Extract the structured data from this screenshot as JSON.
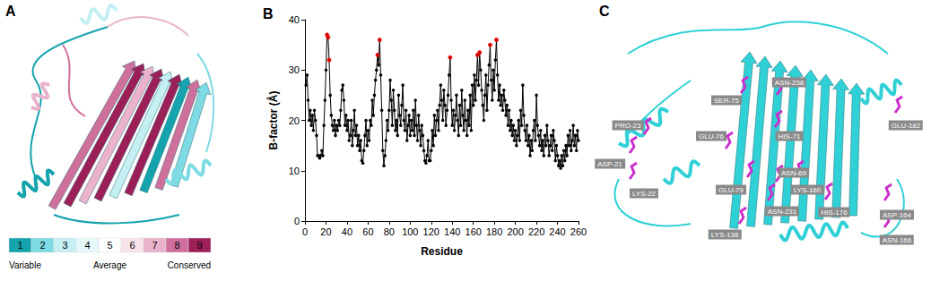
{
  "chart_data": {
    "type": "line",
    "title": "B",
    "x_label": "Residue",
    "y_label": "B-factor (Å)",
    "x": [
      1,
      2,
      3,
      4,
      5,
      6,
      7,
      8,
      9,
      10,
      11,
      12,
      13,
      14,
      15,
      16,
      17,
      18,
      19,
      20,
      21,
      22,
      23,
      24,
      25,
      26,
      27,
      28,
      29,
      30,
      31,
      32,
      33,
      34,
      35,
      36,
      37,
      38,
      39,
      40,
      41,
      42,
      43,
      44,
      45,
      46,
      47,
      48,
      49,
      50,
      51,
      52,
      53,
      54,
      55,
      56,
      57,
      58,
      59,
      60,
      61,
      62,
      63,
      64,
      65,
      66,
      67,
      68,
      69,
      70,
      71,
      72,
      73,
      74,
      75,
      76,
      77,
      78,
      79,
      80,
      81,
      82,
      83,
      84,
      85,
      86,
      87,
      88,
      89,
      90,
      91,
      92,
      93,
      94,
      95,
      96,
      97,
      98,
      99,
      100,
      101,
      102,
      103,
      104,
      105,
      106,
      107,
      108,
      109,
      110,
      111,
      112,
      113,
      114,
      115,
      116,
      117,
      118,
      119,
      120,
      121,
      122,
      123,
      124,
      125,
      126,
      127,
      128,
      129,
      130,
      131,
      132,
      133,
      134,
      135,
      136,
      137,
      138,
      139,
      140,
      141,
      142,
      143,
      144,
      145,
      146,
      147,
      148,
      149,
      150,
      151,
      152,
      153,
      154,
      155,
      156,
      157,
      158,
      159,
      160,
      161,
      162,
      163,
      164,
      165,
      166,
      167,
      168,
      169,
      170,
      171,
      172,
      173,
      174,
      175,
      176,
      177,
      178,
      179,
      180,
      181,
      182,
      183,
      184,
      185,
      186,
      187,
      188,
      189,
      190,
      191,
      192,
      193,
      194,
      195,
      196,
      197,
      198,
      199,
      200,
      201,
      202,
      203,
      204,
      205,
      206,
      207,
      208,
      209,
      210,
      211,
      212,
      213,
      214,
      215,
      216,
      217,
      218,
      219,
      220,
      221,
      222,
      223,
      224,
      225,
      226,
      227,
      228,
      229,
      230,
      231,
      232,
      233,
      234,
      235,
      236,
      237,
      238,
      239,
      240,
      241,
      242,
      243,
      244,
      245,
      246,
      247,
      248,
      249,
      250,
      251,
      252,
      253,
      254,
      255,
      256,
      257,
      258,
      259,
      260
    ],
    "series": [
      {
        "type": "line",
        "color": "#000000",
        "marker": "circle",
        "line_style": "solid",
        "values": [
          27,
          29,
          24,
          20,
          22,
          19,
          21,
          18,
          22,
          20,
          17,
          13,
          13,
          12.5,
          13,
          14,
          13,
          19,
          24,
          30,
          37,
          36.5,
          32,
          25,
          21,
          19,
          18,
          20,
          17,
          19,
          18,
          20,
          19,
          22,
          26,
          27,
          24,
          19,
          21,
          18,
          20,
          16,
          17,
          20,
          15,
          18,
          22,
          17,
          19,
          15,
          17,
          14,
          16,
          12,
          11.5,
          14,
          17,
          20,
          15,
          18,
          16,
          20,
          19,
          24,
          21,
          25,
          28,
          30,
          33,
          31,
          36,
          29,
          22,
          14,
          11,
          13,
          16,
          20,
          18,
          22,
          28,
          24,
          19,
          26,
          22,
          18,
          20,
          17,
          25,
          21,
          19,
          23,
          27,
          20,
          18,
          22,
          16,
          19,
          21,
          17,
          20,
          18,
          22,
          17,
          24,
          19,
          16,
          21,
          18,
          15,
          19,
          17,
          14,
          12,
          11.5,
          13,
          16,
          12,
          12,
          14,
          18,
          15,
          21,
          17,
          20,
          22,
          18,
          23,
          27,
          24,
          20,
          26,
          23,
          19,
          22,
          25,
          29,
          32.5,
          24,
          19,
          22,
          18,
          21,
          25,
          20,
          17,
          23,
          19,
          26,
          21,
          18,
          24,
          20,
          17,
          22,
          19,
          25,
          18,
          27,
          23,
          29,
          24,
          28,
          33,
          27,
          33.5,
          30,
          26,
          23,
          20,
          25,
          29,
          22,
          27,
          31,
          35,
          28,
          24,
          30,
          26,
          32,
          36,
          29,
          24,
          27,
          23,
          25,
          22,
          26,
          24,
          21,
          23,
          19,
          22,
          18,
          20,
          17,
          19,
          16,
          18,
          15,
          17,
          20,
          16,
          22,
          19,
          27,
          21,
          18,
          16,
          19,
          15,
          17,
          13,
          16,
          14,
          18,
          20,
          16,
          25,
          19,
          17,
          15,
          18,
          14,
          16,
          13,
          17,
          15,
          19,
          16,
          13,
          15,
          17,
          14,
          18,
          16,
          12,
          15,
          13,
          11,
          12,
          10.5,
          13,
          11,
          14,
          12,
          15,
          13,
          17,
          15,
          18,
          14,
          16,
          19,
          15,
          17,
          14,
          18,
          16
        ]
      },
      {
        "type": "scatter",
        "color": "#ff0000",
        "marker": "circle",
        "values": [
          null,
          null,
          null,
          null,
          null,
          null,
          null,
          null,
          null,
          null,
          null,
          null,
          null,
          null,
          null,
          null,
          null,
          null,
          null,
          null,
          37,
          36.5,
          32,
          null,
          null,
          null,
          null,
          null,
          null,
          null,
          null,
          null,
          null,
          null,
          null,
          null,
          null,
          null,
          null,
          null,
          null,
          null,
          null,
          null,
          null,
          null,
          null,
          null,
          null,
          null,
          null,
          null,
          null,
          null,
          null,
          null,
          null,
          null,
          null,
          null,
          null,
          null,
          null,
          null,
          null,
          null,
          null,
          null,
          33,
          null,
          36,
          null,
          null,
          null,
          null,
          null,
          null,
          null,
          null,
          null,
          null,
          null,
          null,
          null,
          null,
          null,
          null,
          null,
          null,
          null,
          null,
          null,
          null,
          null,
          null,
          null,
          null,
          null,
          null,
          null,
          null,
          null,
          null,
          null,
          null,
          null,
          null,
          null,
          null,
          null,
          null,
          null,
          null,
          null,
          null,
          null,
          null,
          null,
          null,
          null,
          null,
          null,
          null,
          null,
          null,
          null,
          null,
          null,
          null,
          null,
          null,
          null,
          null,
          null,
          null,
          null,
          null,
          32.5,
          null,
          null,
          null,
          null,
          null,
          null,
          null,
          null,
          null,
          null,
          null,
          null,
          null,
          null,
          null,
          null,
          null,
          null,
          null,
          null,
          null,
          null,
          null,
          null,
          null,
          33,
          null,
          33.5,
          null,
          null,
          null,
          null,
          null,
          null,
          null,
          null,
          null,
          35,
          null,
          null,
          null,
          null,
          null,
          36,
          null,
          null,
          null,
          null,
          null,
          null,
          null,
          null,
          null,
          null,
          null,
          null,
          null,
          null,
          null,
          null,
          null,
          null,
          null,
          null,
          null,
          null,
          null,
          null,
          null,
          null,
          null,
          null,
          null,
          null,
          null,
          null,
          null,
          null,
          null,
          null,
          null,
          null,
          null,
          null,
          null,
          null,
          null,
          null,
          null,
          null,
          null,
          null,
          null,
          null,
          null,
          null,
          null,
          null,
          null,
          null,
          null,
          null,
          null,
          null,
          null,
          null,
          null,
          null,
          null,
          null,
          null,
          null,
          null,
          null,
          null,
          null,
          null,
          null,
          null,
          null,
          null,
          null
        ]
      }
    ],
    "xlim": [
      0,
      260
    ],
    "xticks": [
      0,
      20,
      40,
      60,
      80,
      100,
      120,
      140,
      160,
      180,
      200,
      220,
      240,
      260
    ],
    "ylim": [
      0,
      40
    ],
    "yticks": [
      0,
      10,
      20,
      30,
      40
    ],
    "grid": false
  },
  "panel_a": {
    "title": "A",
    "scale": {
      "grades": [
        "1",
        "2",
        "3",
        "4",
        "5",
        "6",
        "7",
        "8",
        "9"
      ],
      "colors": [
        "#15a3ad",
        "#7fdbe3",
        "#c4eff3",
        "#e6f8fa",
        "#ffffff",
        "#f8e3ec",
        "#eab3cb",
        "#cf6f9b",
        "#9c1f58"
      ],
      "labels": [
        "Variable",
        "Average",
        "Conserved"
      ]
    }
  },
  "panel_c": {
    "title": "C",
    "residue_labels": [
      "ASN-238",
      "SER-75",
      "PRO-23",
      "GLU-76",
      "HIS-71",
      "GLU-182",
      "ASP-21",
      "ASN-69",
      "GLU-79",
      "LYS-160",
      "LYS-22",
      "ASN-231",
      "HIS-176",
      "ASP-164",
      "LYS-138",
      "ASN-166"
    ]
  }
}
